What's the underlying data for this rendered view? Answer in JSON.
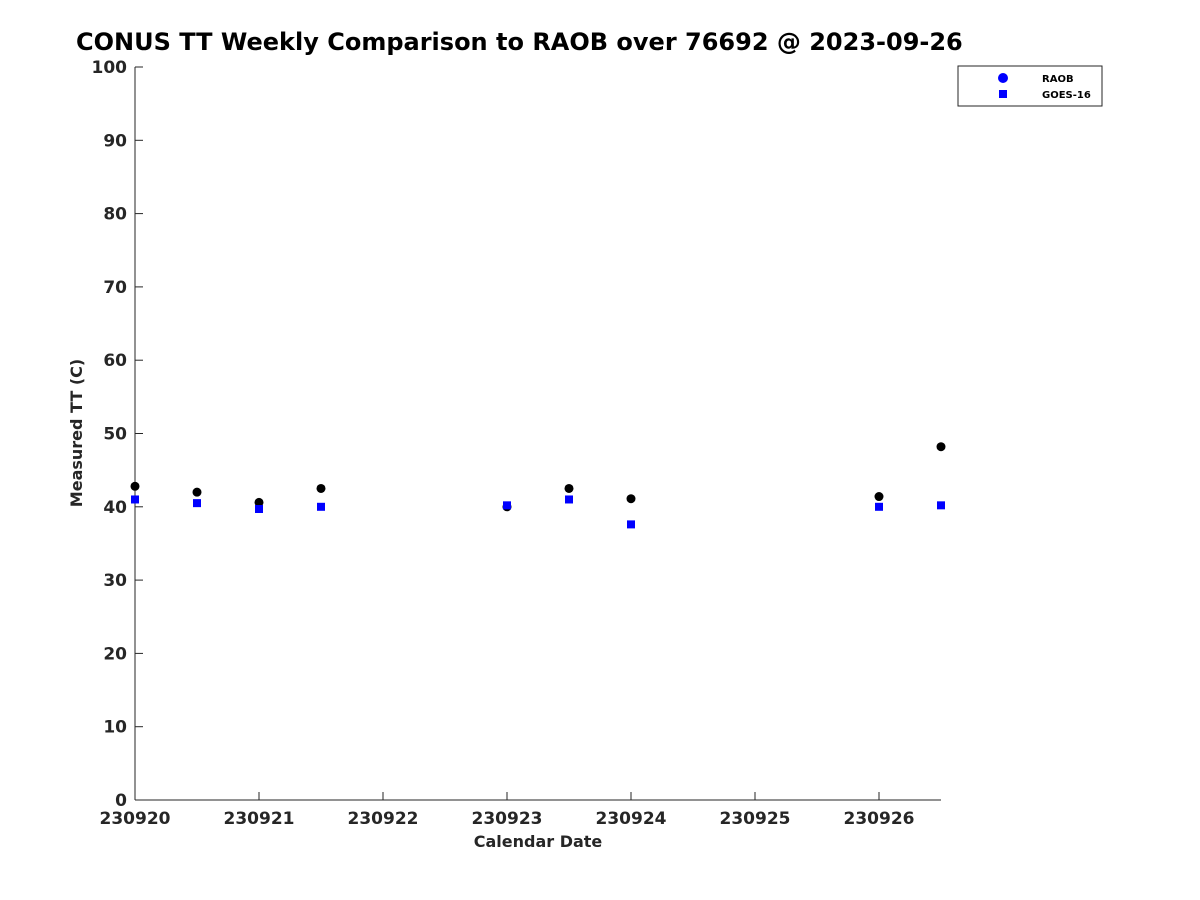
{
  "chart_data": {
    "type": "scatter",
    "title": "CONUS TT Weekly Comparison to RAOB over 76692 @ 2023-09-26",
    "xlabel": "Calendar Date",
    "ylabel": "Measured TT (C)",
    "xlim": [
      "230920",
      "230926 12Z"
    ],
    "ylim": [
      0,
      100
    ],
    "x_ticks": [
      "230920",
      "230921",
      "230922",
      "230923",
      "230924",
      "230925",
      "230926"
    ],
    "y_ticks": [
      0,
      10,
      20,
      30,
      40,
      50,
      60,
      70,
      80,
      90,
      100
    ],
    "grid": false,
    "legend_position": "top-right",
    "x": [
      "230920 00Z",
      "230920 12Z",
      "230921 00Z",
      "230921 12Z",
      "230923 00Z",
      "230923 12Z",
      "230924 00Z",
      "230926 00Z",
      "230926 12Z"
    ],
    "series": [
      {
        "name": "RAOB",
        "marker": "circle",
        "color": "#000000",
        "legend_color": "#0000ff",
        "values": [
          42.8,
          42.0,
          40.6,
          42.5,
          40.0,
          42.5,
          41.1,
          41.4,
          48.2
        ]
      },
      {
        "name": "GOES-16",
        "marker": "square",
        "color": "#0000ff",
        "values": [
          41.0,
          40.5,
          39.7,
          40.0,
          40.2,
          41.0,
          37.6,
          40.0,
          40.2
        ]
      }
    ]
  }
}
